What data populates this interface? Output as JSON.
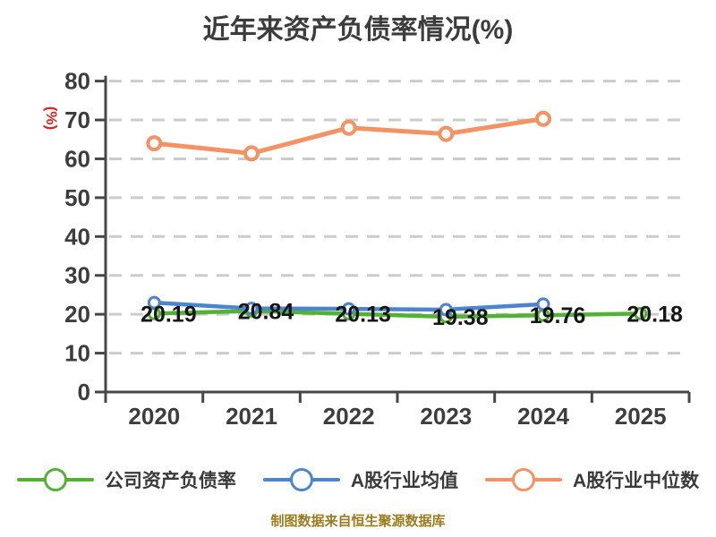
{
  "title": "近年来资产负债率情况(%)",
  "y_axis_unit": "(%)",
  "footer": "制图数据来自恒生聚源数据库",
  "colors": {
    "company": "#53b135",
    "industry_mean": "#4c84cd",
    "industry_median": "#f39264",
    "title_text": "#3c3c3c",
    "axis": "#474747",
    "grid": "#cbcbcb",
    "tick_label": "#3d3d3d",
    "unit_label": "#e3241d",
    "data_label": "#161616",
    "footer_text": "#9a7c1e"
  },
  "legend": [
    {
      "id": "company",
      "label": "公司资产负债率",
      "color": "#53b135"
    },
    {
      "id": "industry-average",
      "label": "A股行业均值",
      "color": "#4c84cd"
    },
    {
      "id": "industry-median",
      "label": "A股行业中位数",
      "color": "#f39264"
    }
  ],
  "chart_data": {
    "type": "line",
    "title": "近年来资产负债率情况(%)",
    "ylabel": "(%)",
    "xlabel": "",
    "grid": true,
    "legend_position": "bottom",
    "ylim": [
      0,
      80
    ],
    "yticks": [
      0,
      10,
      20,
      30,
      40,
      50,
      60,
      70,
      80
    ],
    "categories": [
      "2020",
      "2021",
      "2022",
      "2023",
      "2024",
      "2025"
    ],
    "series": [
      {
        "id": "company",
        "name": "公司资产负债率",
        "color": "#53b135",
        "values": [
          20.19,
          20.84,
          20.13,
          19.38,
          19.76,
          20.18
        ],
        "labels_shown": true,
        "line_width": 4.5,
        "marker_r": 6,
        "marker_stroke": 3
      },
      {
        "id": "industry-average",
        "name": "A股行业均值",
        "color": "#4c84cd",
        "values": [
          23.0,
          21.5,
          21.4,
          21.2,
          22.6,
          null
        ],
        "labels_shown": false,
        "line_width": 4.5,
        "marker_r": 6,
        "marker_stroke": 3
      },
      {
        "id": "industry-median",
        "name": "A股行业中位数",
        "color": "#f39264",
        "values": [
          64.0,
          61.4,
          68.0,
          66.4,
          70.3,
          null
        ],
        "labels_shown": false,
        "line_width": 5,
        "marker_r": 7,
        "marker_stroke": 4
      }
    ]
  }
}
